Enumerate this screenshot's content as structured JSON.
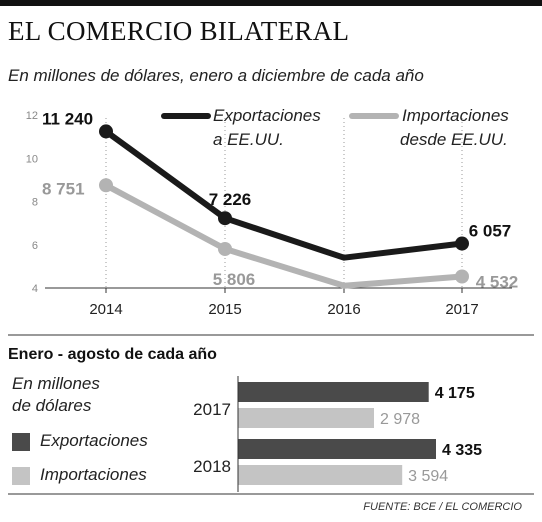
{
  "title": "EL COMERCIO BILATERAL",
  "subtitle": "En millones de dólares, enero a diciembre de cada año",
  "colors": {
    "exports": "#1a1a1a",
    "imports": "#b3b3b3"
  },
  "legend": {
    "exports_l1": "Exportaciones",
    "exports_l2": "a EE.UU.",
    "imports_l1": "Importaciones",
    "imports_l2": "desde EE.UU."
  },
  "section2": {
    "title": "Enero - agosto de cada año",
    "unit_l1": "En millones",
    "unit_l2": "de dólares",
    "legend_exports": "Exportaciones",
    "legend_imports": "Importaciones"
  },
  "source": "FUENTE: BCE / EL COMERCIO",
  "chart_data": [
    {
      "type": "line",
      "x": [
        "2014",
        "2015",
        "2016",
        "2017"
      ],
      "ylim": [
        4,
        12
      ],
      "yticks": [
        "4",
        "6",
        "8",
        "10",
        "12"
      ],
      "series": [
        {
          "name": "Exportaciones a EE.UU.",
          "values": [
            11.24,
            7.226,
            5.4,
            6.057
          ],
          "labels": [
            "11 240",
            "7 226",
            "",
            "6 057"
          ]
        },
        {
          "name": "Importaciones desde EE.UU.",
          "values": [
            8.751,
            5.806,
            4.1,
            4.532
          ],
          "labels": [
            "8 751",
            "5 806",
            "",
            "4 532"
          ]
        }
      ]
    },
    {
      "type": "bar",
      "orientation": "horizontal",
      "categories": [
        "2017",
        "2018"
      ],
      "series": [
        {
          "name": "Exportaciones",
          "values": [
            4175,
            4335
          ],
          "labels": [
            "4 175",
            "4 335"
          ]
        },
        {
          "name": "Importaciones",
          "values": [
            2978,
            3594
          ],
          "labels": [
            "2 978",
            "3 594"
          ]
        }
      ]
    }
  ]
}
